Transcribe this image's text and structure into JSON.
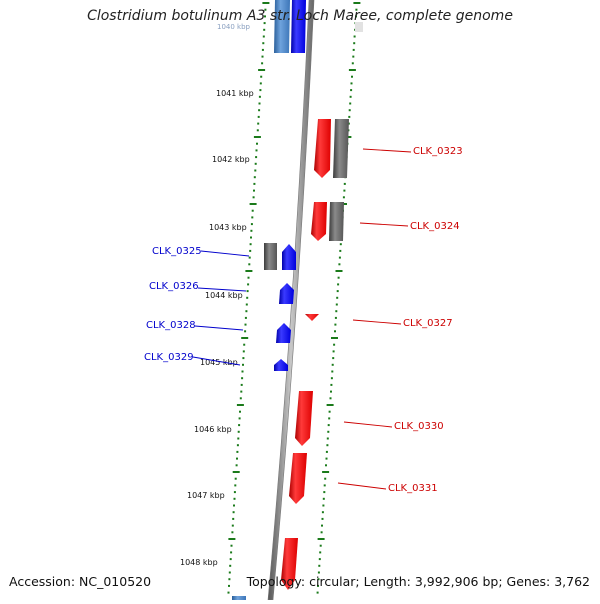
{
  "title": "Clostridium botulinum A3 str. Loch Maree, complete genome",
  "top_partial_label": "1040 kbp",
  "accession_text": "Accession: NC_010520",
  "summary_text": "Topology: circular; Length: 3,992,906 bp; Genes: 3,762",
  "colors": {
    "backbone": "#8a8a8a",
    "tick": "#1a7a1a",
    "forward_gene": "#0000ff",
    "reverse_gene": "#ff0000",
    "gray_feature": "#6e6e6e",
    "light_blue_feature": "#4a86c8",
    "forward_label": "#0000cc",
    "reverse_label": "#cc0000"
  },
  "kbp_ticks": [
    "1041 kbp",
    "1042 kbp",
    "1043 kbp",
    "1044 kbp",
    "1045 kbp",
    "1046 kbp",
    "1047 kbp",
    "1048 kbp"
  ],
  "forward_genes": [
    "CLK_0325",
    "CLK_0326",
    "CLK_0328",
    "CLK_0329"
  ],
  "reverse_genes": [
    "CLK_0323",
    "CLK_0324",
    "CLK_0327",
    "CLK_0330",
    "CLK_0331"
  ]
}
